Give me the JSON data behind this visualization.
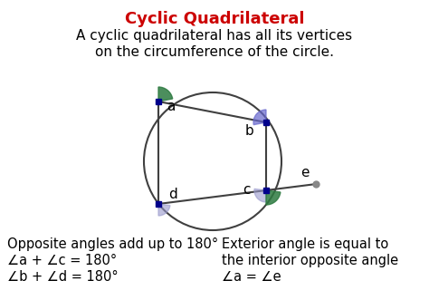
{
  "title": "Cyclic Quadrilateral",
  "title_color": "#cc0000",
  "subtitle_line1": "A cyclic quadrilateral has all its vertices",
  "subtitle_line2": "on the circumference of the circle.",
  "bottom_left_lines": [
    "Opposite angles add up to 180°",
    "∠a + ∠c = 180°",
    "∠b + ∠d = 180°"
  ],
  "bottom_right_lines": [
    "Exterior angle is equal to",
    "the interior opposite angle",
    "∠a = ∠e"
  ],
  "bg_color": "#ffffff",
  "line_color": "#404040",
  "node_color": "#00008B",
  "fig_width": 4.74,
  "fig_height": 3.31,
  "dpi": 100
}
